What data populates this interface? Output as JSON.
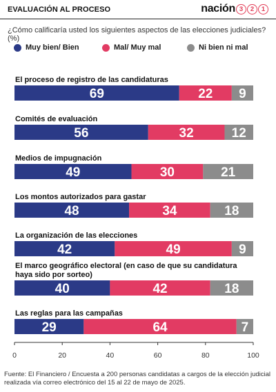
{
  "header": {
    "title": "EVALUACIÓN AL PROCESO",
    "brand_word": "nación",
    "brand_digits": [
      "3",
      "2",
      "1"
    ]
  },
  "question": "¿Cómo calificaría usted los siguientes aspectos de las elecciones judiciales? (%)",
  "colors": {
    "muy_bien": "#2b3a87",
    "mal": "#e23b63",
    "ni": "#8c8c8c",
    "brand": "#e23b55"
  },
  "chart_data": {
    "type": "bar",
    "orientation": "horizontal",
    "stacked": true,
    "categories": [
      "El proceso de registro de las candidaturas",
      "Comités de evaluación",
      "Medios de impugnación",
      "Los montos autorizados para gastar",
      "La organización de las elecciones",
      "El marco geográfico electoral (en caso de que su candidatura haya sido por sorteo)",
      "Las reglas para las campañas"
    ],
    "series": [
      {
        "name": "Muy bien/ Bien",
        "color": "#2b3a87",
        "values": [
          69,
          56,
          49,
          48,
          42,
          40,
          29
        ]
      },
      {
        "name": "Mal/ Muy mal",
        "color": "#e23b63",
        "values": [
          22,
          32,
          30,
          34,
          49,
          42,
          64
        ]
      },
      {
        "name": "Ni bien ni mal",
        "color": "#8c8c8c",
        "values": [
          9,
          12,
          21,
          18,
          9,
          18,
          7
        ]
      }
    ],
    "xlim": [
      0,
      100
    ],
    "xticks": [
      "0",
      "20",
      "40",
      "60",
      "80",
      "100"
    ],
    "legend_position": "top",
    "grid": false
  },
  "footer": "Fuente: El Financiero / Encuesta a 200 personas candidatas a cargos de la elección judicial realizada vía correo electrónico del 15 al 22 de mayo de 2025."
}
